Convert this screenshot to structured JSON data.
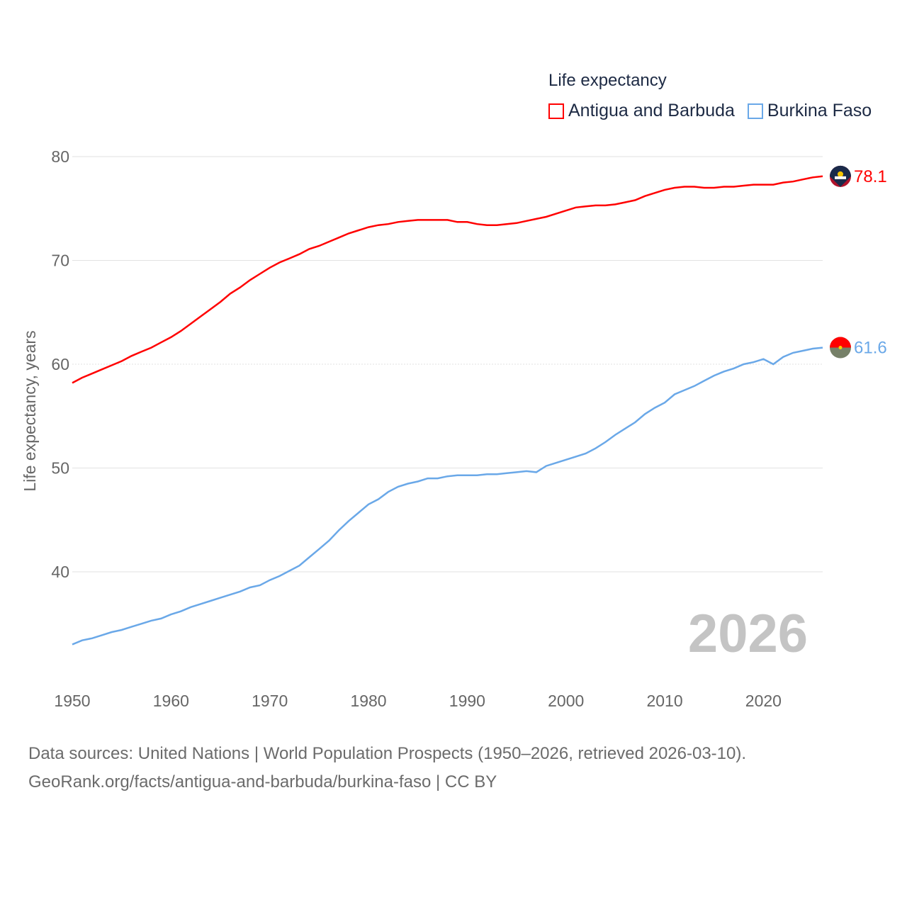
{
  "chart_data": {
    "type": "line",
    "title": "Life expectancy",
    "ylabel": "Life expectancy, years",
    "xlabel": "",
    "xlim": [
      1950,
      2026
    ],
    "ylim": [
      33,
      80
    ],
    "xticks": [
      1950,
      1960,
      1970,
      1980,
      1990,
      2000,
      2010,
      2020
    ],
    "yticks": [
      40,
      50,
      60,
      70,
      80
    ],
    "grid": true,
    "legend_position": "top-right",
    "watermark_year": "2026",
    "x": [
      1950,
      1951,
      1952,
      1953,
      1954,
      1955,
      1956,
      1957,
      1958,
      1959,
      1960,
      1961,
      1962,
      1963,
      1964,
      1965,
      1966,
      1967,
      1968,
      1969,
      1970,
      1971,
      1972,
      1973,
      1974,
      1975,
      1976,
      1977,
      1978,
      1979,
      1980,
      1981,
      1982,
      1983,
      1984,
      1985,
      1986,
      1987,
      1988,
      1989,
      1990,
      1991,
      1992,
      1993,
      1994,
      1995,
      1996,
      1997,
      1998,
      1999,
      2000,
      2001,
      2002,
      2003,
      2004,
      2005,
      2006,
      2007,
      2008,
      2009,
      2010,
      2011,
      2012,
      2013,
      2014,
      2015,
      2016,
      2017,
      2018,
      2019,
      2020,
      2021,
      2022,
      2023,
      2024,
      2025,
      2026
    ],
    "series": [
      {
        "name": "Antigua and Barbuda",
        "color": "#ff0000",
        "end_label": "78.1",
        "values": [
          58.2,
          58.7,
          59.1,
          59.5,
          59.9,
          60.3,
          60.8,
          61.2,
          61.6,
          62.1,
          62.6,
          63.2,
          63.9,
          64.6,
          65.3,
          66.0,
          66.8,
          67.4,
          68.1,
          68.7,
          69.3,
          69.8,
          70.2,
          70.6,
          71.1,
          71.4,
          71.8,
          72.2,
          72.6,
          72.9,
          73.2,
          73.4,
          73.5,
          73.7,
          73.8,
          73.9,
          73.9,
          73.9,
          73.9,
          73.7,
          73.7,
          73.5,
          73.4,
          73.4,
          73.5,
          73.6,
          73.8,
          74.0,
          74.2,
          74.5,
          74.8,
          75.1,
          75.2,
          75.3,
          75.3,
          75.4,
          75.6,
          75.8,
          76.2,
          76.5,
          76.8,
          77.0,
          77.1,
          77.1,
          77.0,
          77.0,
          77.1,
          77.1,
          77.2,
          77.3,
          77.3,
          77.3,
          77.5,
          77.6,
          77.8,
          78.0,
          78.1
        ]
      },
      {
        "name": "Burkina Faso",
        "color": "#6aa8e8",
        "end_label": "61.6",
        "values": [
          33.0,
          33.4,
          33.6,
          33.9,
          34.2,
          34.4,
          34.7,
          35.0,
          35.3,
          35.5,
          35.9,
          36.2,
          36.6,
          36.9,
          37.2,
          37.5,
          37.8,
          38.1,
          38.5,
          38.7,
          39.2,
          39.6,
          40.1,
          40.6,
          41.4,
          42.2,
          43.0,
          44.0,
          44.9,
          45.7,
          46.5,
          47.0,
          47.7,
          48.2,
          48.5,
          48.7,
          49.0,
          49.0,
          49.2,
          49.3,
          49.3,
          49.3,
          49.4,
          49.4,
          49.5,
          49.6,
          49.7,
          49.6,
          50.2,
          50.5,
          50.8,
          51.1,
          51.4,
          51.9,
          52.5,
          53.2,
          53.8,
          54.4,
          55.2,
          55.8,
          56.3,
          57.1,
          57.5,
          57.9,
          58.4,
          58.9,
          59.3,
          59.6,
          60.0,
          60.2,
          60.5,
          60.0,
          60.7,
          61.1,
          61.3,
          61.5,
          61.6
        ]
      }
    ]
  },
  "footer": {
    "line1": "Data sources: United Nations | World Population Prospects (1950–2026, retrieved 2026-03-10).",
    "line2": "GeoRank.org/facts/antigua-and-barbuda/burkina-faso | CC BY"
  }
}
